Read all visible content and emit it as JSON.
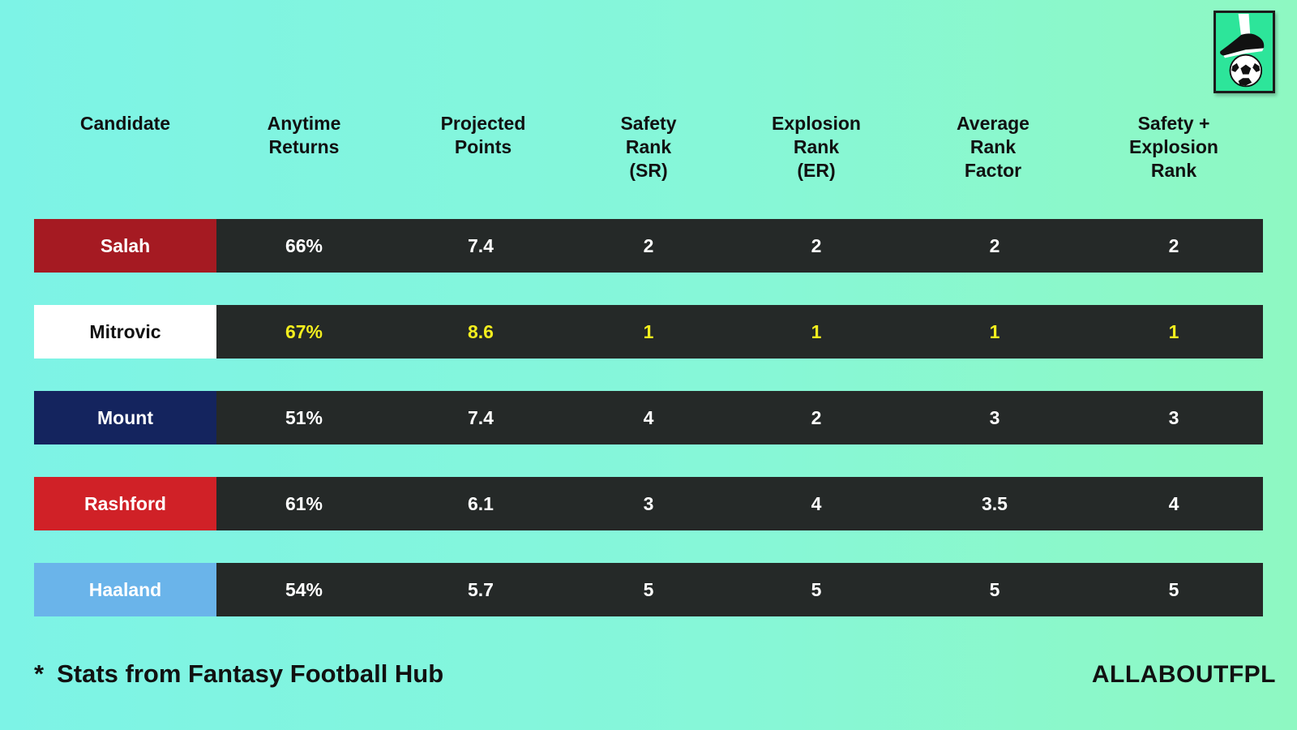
{
  "columns": [
    "Candidate",
    "Anytime\nReturns",
    "Projected\nPoints",
    "Safety\nRank\n(SR)",
    "Explosion\nRank\n(ER)",
    "Average\nRank\nFactor",
    "Safety +\nExplosion\nRank"
  ],
  "rows": [
    {
      "name": "Salah",
      "name_bg": "#a51a22",
      "name_color": "#ffffff",
      "highlight": false,
      "values": [
        "66%",
        "7.4",
        "2",
        "2",
        "2",
        "2"
      ]
    },
    {
      "name": "Mitrovic",
      "name_bg": "#ffffff",
      "name_color": "#111111",
      "highlight": true,
      "values": [
        "67%",
        "8.6",
        "1",
        "1",
        "1",
        "1"
      ]
    },
    {
      "name": "Mount",
      "name_bg": "#14245e",
      "name_color": "#ffffff",
      "highlight": false,
      "values": [
        "51%",
        "7.4",
        "4",
        "2",
        "3",
        "3"
      ]
    },
    {
      "name": "Rashford",
      "name_bg": "#d02127",
      "name_color": "#ffffff",
      "highlight": false,
      "values": [
        "61%",
        "6.1",
        "3",
        "4",
        "3.5",
        "4"
      ]
    },
    {
      "name": "Haaland",
      "name_bg": "#6ab4ea",
      "name_color": "#ffffff",
      "highlight": false,
      "values": [
        "54%",
        "5.7",
        "5",
        "5",
        "5",
        "5"
      ]
    }
  ],
  "footnote": {
    "marker": "*",
    "text": "Stats from Fantasy Football Hub"
  },
  "brand": "ALLABOUTFPL",
  "colors": {
    "row_bg": "#252928",
    "highlight_text": "#f3ee1e",
    "logo_bg": "#2de59a"
  },
  "logo": {
    "icon": "football-boot-and-ball-icon"
  }
}
